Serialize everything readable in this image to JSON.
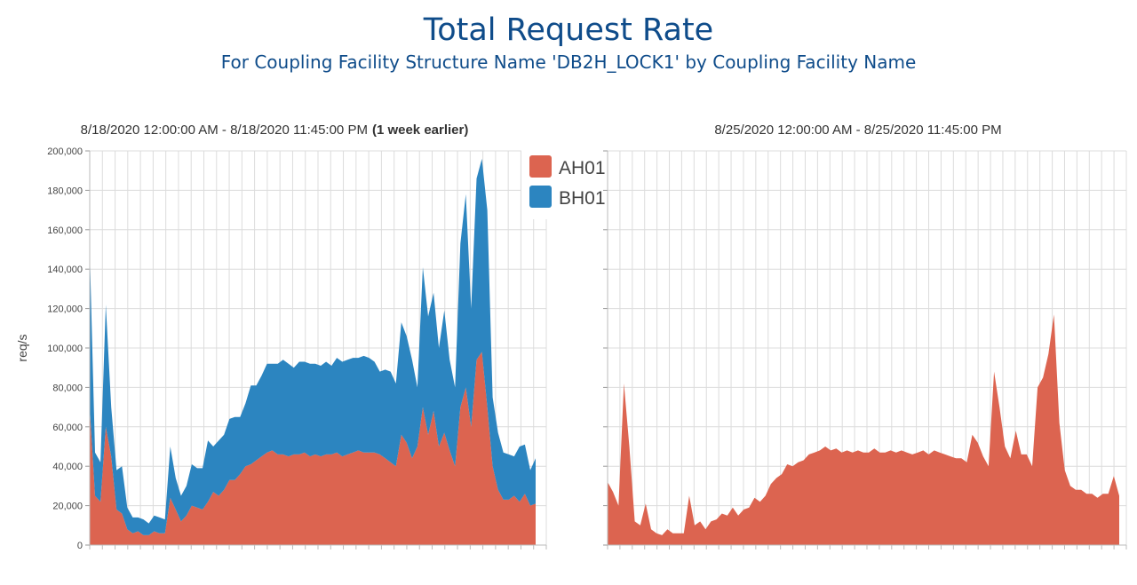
{
  "title": "Total Request Rate",
  "subtitle": "For Coupling Facility Structure Name 'DB2H_LOCK1' by Coupling Facility Name",
  "colors": {
    "AH01": "#dc6450",
    "BH01": "#2c85c0",
    "grid": "#dcdcdc",
    "title": "#0f4c8a"
  },
  "legend": [
    {
      "name": "AH01",
      "color": "#dc6450"
    },
    {
      "name": "BH01",
      "color": "#2c85c0"
    }
  ],
  "chart_data": [
    {
      "type": "area",
      "stacked": true,
      "subtitle": "8/18/2020 12:00:00 AM - 8/18/2020 11:45:00 PM",
      "subtitle_note": "(1 week earlier)",
      "ylabel": "req/s",
      "ylim": [
        0,
        200000
      ],
      "yticks": [
        "0",
        "20,000",
        "40,000",
        "60,000",
        "80,000",
        "100,000",
        "120,000",
        "140,000",
        "160,000",
        "180,000",
        "200,000"
      ],
      "grid": true,
      "legend_position": "top-right",
      "series": [
        {
          "name": "AH01",
          "values": [
            70000,
            25000,
            22000,
            60000,
            45000,
            18000,
            16000,
            8000,
            6000,
            7000,
            5000,
            5000,
            7000,
            6000,
            6000,
            24000,
            18000,
            12000,
            15000,
            20000,
            19000,
            18000,
            22000,
            27000,
            25000,
            28000,
            33000,
            33000,
            36000,
            40000,
            41000,
            43000,
            45000,
            47000,
            48000,
            46000,
            46000,
            45000,
            46000,
            46000,
            47000,
            45000,
            46000,
            45000,
            46000,
            46000,
            47000,
            45000,
            46000,
            47000,
            48000,
            47000,
            47000,
            47000,
            46000,
            44000,
            42000,
            40000,
            56000,
            52000,
            44000,
            50000,
            70000,
            56000,
            68000,
            50000,
            57000,
            48000,
            40000,
            70000,
            80000,
            60000,
            94000,
            98000,
            70000,
            40000,
            28000,
            23000,
            23000,
            25000,
            22000,
            26000,
            20000,
            21000
          ]
        },
        {
          "name": "BH01",
          "values": [
            80000,
            22000,
            20000,
            62000,
            25000,
            20000,
            24000,
            11000,
            8000,
            7000,
            8000,
            6000,
            8000,
            8000,
            7000,
            26000,
            16000,
            13000,
            15000,
            21000,
            20000,
            21000,
            31000,
            23000,
            28000,
            28000,
            31000,
            32000,
            29000,
            32000,
            40000,
            38000,
            41000,
            45000,
            44000,
            46000,
            48000,
            47000,
            44000,
            47000,
            46000,
            47000,
            46000,
            46000,
            47000,
            45000,
            48000,
            48000,
            48000,
            48000,
            47000,
            49000,
            48000,
            46000,
            42000,
            45000,
            46000,
            42000,
            57000,
            54000,
            50000,
            30000,
            71000,
            60000,
            60000,
            50000,
            62000,
            46000,
            40000,
            83000,
            98000,
            60000,
            92000,
            98000,
            100000,
            35000,
            29000,
            24000,
            23000,
            20000,
            28000,
            25000,
            18000,
            23000
          ]
        }
      ]
    },
    {
      "type": "area",
      "stacked": true,
      "subtitle": "8/25/2020 12:00:00 AM - 8/25/2020 11:45:00 PM",
      "subtitle_note": "",
      "ylim": [
        0,
        200000
      ],
      "grid": true,
      "series": [
        {
          "name": "AH01",
          "values": [
            32000,
            27000,
            20000,
            82000,
            50000,
            12000,
            10000,
            21000,
            8000,
            6000,
            5000,
            8000,
            6000,
            6000,
            6000,
            25000,
            10000,
            12000,
            8000,
            12000,
            13000,
            16000,
            15000,
            19000,
            15000,
            18000,
            19000,
            24000,
            22000,
            25000,
            31000,
            34000,
            36000,
            41000,
            40000,
            42000,
            43000,
            46000,
            47000,
            48000,
            50000,
            48000,
            49000,
            47000,
            48000,
            47000,
            48000,
            47000,
            47000,
            49000,
            47000,
            47000,
            48000,
            47000,
            48000,
            47000,
            46000,
            47000,
            48000,
            46000,
            48000,
            47000,
            46000,
            45000,
            44000,
            44000,
            42000,
            56000,
            52000,
            45000,
            40000,
            88000,
            70000,
            50000,
            44000,
            58000,
            46000,
            46000,
            40000,
            80000,
            85000,
            97000,
            117000,
            62000,
            38000,
            30000,
            28000,
            28000,
            26000,
            26000,
            24000,
            26000,
            26000,
            35000,
            25000
          ]
        }
      ]
    }
  ]
}
